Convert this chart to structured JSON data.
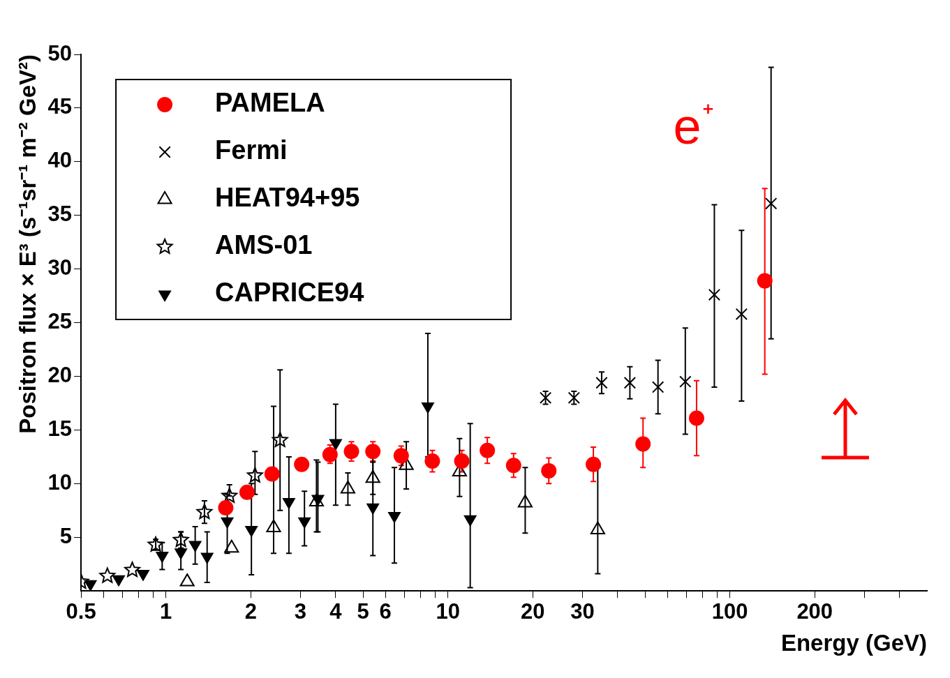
{
  "chart_data": {
    "type": "scatter",
    "xlabel": "Energy (GeV)",
    "ylabel": "Positron flux × E³ (s⁻¹sr⁻¹ m⁻² GeV²)",
    "log": "x",
    "xlim": [
      0.5,
      500
    ],
    "ylim": [
      0,
      50
    ],
    "xticks": [
      0.5,
      {
        "value": 0.6,
        "label": null
      },
      {
        "value": 0.7,
        "label": null
      },
      {
        "value": 0.8,
        "label": null
      },
      {
        "value": 0.9,
        "label": null
      },
      1,
      2,
      3,
      4,
      5,
      6,
      {
        "value": 7,
        "label": null
      },
      {
        "value": 8,
        "label": null
      },
      {
        "value": 9,
        "label": null
      },
      10,
      20,
      30,
      {
        "value": 40,
        "label": null
      },
      {
        "value": 50,
        "label": null
      },
      {
        "value": 60,
        "label": null
      },
      {
        "value": 70,
        "label": null
      },
      {
        "value": 80,
        "label": null
      },
      {
        "value": 90,
        "label": null
      },
      100,
      200,
      {
        "value": 300,
        "label": null
      },
      {
        "value": 400,
        "label": null
      }
    ],
    "yticks": [
      5,
      10,
      15,
      20,
      25,
      30,
      35,
      40,
      45,
      50
    ],
    "grid": false,
    "legend": "top left",
    "annotations": [
      "e⁺"
    ],
    "series": [
      {
        "name": "PAMELA",
        "color": "#ff0000",
        "marker": "circle",
        "x": [
          1.63,
          1.94,
          2.38,
          3.03,
          3.82,
          4.55,
          5.42,
          6.83,
          8.81,
          11.2,
          13.8,
          17.1,
          22.8,
          32.8,
          49.2,
          76.2,
          133
        ],
        "values": [
          7.75,
          9.2,
          10.9,
          11.8,
          12.7,
          13.0,
          13.0,
          12.6,
          12.1,
          12.1,
          13.1,
          11.7,
          11.2,
          11.8,
          13.7,
          16.1,
          28.9
        ],
        "errors": [
          null,
          null,
          null,
          null,
          [
            11.9,
            13.6
          ],
          [
            12.1,
            13.9
          ],
          [
            12.1,
            13.9
          ],
          [
            11.7,
            13.5
          ],
          [
            11.1,
            13.1
          ],
          [
            11.1,
            13.1
          ],
          [
            11.9,
            14.3
          ],
          [
            10.6,
            12.8
          ],
          [
            10.0,
            12.4
          ],
          [
            10.2,
            13.4
          ],
          [
            11.5,
            16.1
          ],
          [
            12.6,
            19.6
          ],
          [
            20.2,
            37.5
          ]
        ]
      },
      {
        "name": "Fermi",
        "color": "#000000",
        "marker": "cross",
        "x": [
          22.2,
          28.0,
          35.1,
          44.2,
          55.6,
          69.5,
          88.1,
          110,
          140
        ],
        "values": [
          18.0,
          18.0,
          19.4,
          19.4,
          19.0,
          19.5,
          27.6,
          25.8,
          36.1
        ],
        "errors": [
          [
            17.4,
            18.6
          ],
          [
            17.4,
            18.6
          ],
          [
            18.4,
            20.4
          ],
          [
            17.9,
            20.9
          ],
          [
            16.5,
            21.5
          ],
          [
            14.6,
            24.5
          ],
          [
            19.0,
            36.0
          ],
          [
            17.7,
            33.6
          ],
          [
            23.5,
            48.8
          ]
        ]
      },
      {
        "name": "HEAT94+95",
        "color": "#000000",
        "marker": "triangle",
        "x": [
          1.19,
          1.71,
          2.41,
          3.42,
          4.42,
          5.42,
          7.12,
          11.0,
          18.8,
          34.0
        ],
        "values": [
          0.85,
          4.0,
          5.9,
          8.3,
          9.5,
          10.5,
          11.7,
          11.1,
          8.2,
          5.7
        ],
        "errors": [
          null,
          null,
          [
            3.5,
            17.2
          ],
          [
            5.5,
            12.2
          ],
          [
            8.0,
            11.0
          ],
          [
            9.0,
            13.5
          ],
          [
            9.5,
            13.9
          ],
          [
            8.8,
            14.2
          ],
          [
            5.4,
            11.5
          ],
          [
            1.6,
            11.5
          ]
        ]
      },
      {
        "name": "AMS-01",
        "color": "#000000",
        "marker": "star",
        "x": [
          0.5,
          0.62,
          0.76,
          0.92,
          1.13,
          1.37,
          1.68,
          2.07,
          2.54
        ],
        "values": [
          0.85,
          1.4,
          1.95,
          4.3,
          4.75,
          7.35,
          8.85,
          10.75,
          14.05
        ],
        "errors": [
          null,
          null,
          null,
          [
            3.8,
            4.8
          ],
          [
            4.0,
            5.5
          ],
          [
            6.3,
            8.4
          ],
          [
            8.85,
            9.9
          ],
          [
            9.0,
            13.0
          ],
          [
            7.5,
            20.6
          ]
        ]
      },
      {
        "name": "CAPRICE94",
        "color": "#000000",
        "marker": "triangle-down",
        "x": [
          0.54,
          0.68,
          0.83,
          0.97,
          1.13,
          1.27,
          1.4,
          1.65,
          2.01,
          2.73,
          3.1,
          3.46,
          4.0,
          5.42,
          6.46,
          8.49,
          12.0
        ],
        "values": [
          0.65,
          1.1,
          1.6,
          3.3,
          3.6,
          4.3,
          3.2,
          6.5,
          5.7,
          8.3,
          6.5,
          8.6,
          13.8,
          7.8,
          7.0,
          17.2,
          6.7
        ],
        "errors": [
          null,
          null,
          null,
          [
            2.0,
            4.5
          ],
          [
            2.0,
            5.5
          ],
          [
            2.5,
            6.0
          ],
          [
            0.8,
            5.5
          ],
          [
            3.5,
            9.0
          ],
          [
            1.5,
            10.0
          ],
          [
            3.5,
            12.5
          ],
          [
            4.2,
            9.3
          ],
          [
            5.5,
            12.0
          ],
          [
            8.0,
            17.4
          ],
          [
            3.3,
            12.0
          ],
          [
            2.6,
            11.5
          ],
          [
            12.5,
            24.0
          ],
          [
            0.3,
            15.6
          ]
        ]
      }
    ]
  }
}
